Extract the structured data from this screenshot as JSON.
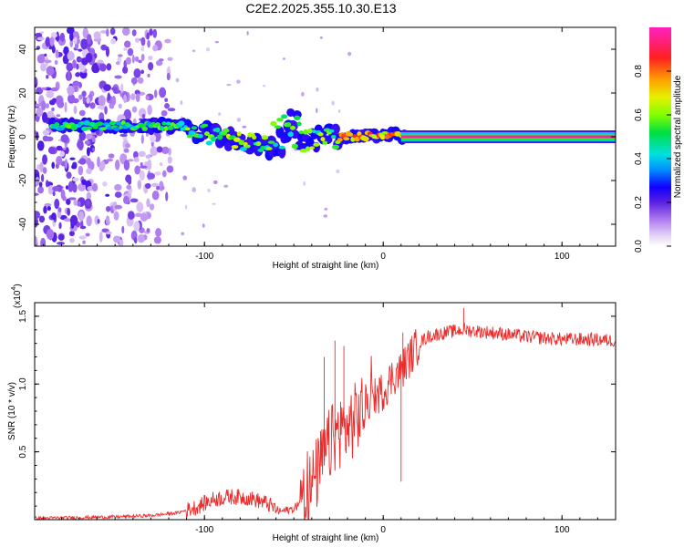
{
  "title": "C2E2.2025.355.10.30.E13",
  "chart_data": [
    {
      "type": "heatmap",
      "name": "spectrogram",
      "xlabel": "Height of straight line (km)",
      "ylabel": "Frequency (Hz)",
      "xlim": [
        -195,
        130
      ],
      "ylim": [
        -50,
        50
      ],
      "xticks": [
        -100,
        0,
        100
      ],
      "yticks": [
        -40,
        -20,
        0,
        20,
        40
      ],
      "colorbar": {
        "label": "Normalized spectral amplitude",
        "range": [
          0,
          1
        ],
        "ticks": [
          0.0,
          0.2,
          0.4,
          0.6,
          0.8
        ]
      },
      "features": [
        {
          "description": "scattered low-amplitude noise",
          "x_range": [
            -195,
            -118
          ],
          "y_range": [
            -48,
            48
          ],
          "amplitude": 0.1
        },
        {
          "description": "noisy band",
          "x_range": [
            -185,
            -110
          ],
          "y_center": 5,
          "amplitude": 0.35
        },
        {
          "description": "drifting band",
          "x_range": [
            -110,
            -60
          ],
          "y_center": [
            3,
            -5
          ],
          "amplitude": 0.55
        },
        {
          "description": "split band",
          "x_range": [
            -60,
            -25
          ],
          "y_center": [
            6,
            -3
          ],
          "amplitude": 0.5
        },
        {
          "description": "converging band",
          "x_range": [
            -25,
            10
          ],
          "y_center": [
            0,
            1
          ],
          "amplitude": 0.75
        },
        {
          "description": "clean carrier line",
          "x_range": [
            10,
            130
          ],
          "y_center": 0,
          "amplitude": 1.0
        }
      ]
    },
    {
      "type": "line",
      "name": "snr",
      "xlabel": "Height of straight line (km)",
      "ylabel": "SNR (10 * v/v)",
      "y_scale_label": "(x10",
      "y_scale_exp": "4",
      "xlim": [
        -195,
        130
      ],
      "ylim": [
        0,
        1.6
      ],
      "xticks": [
        -100,
        0,
        100
      ],
      "yticks": [
        0.5,
        1.0,
        1.5
      ],
      "color": "#ee2a2a",
      "envelope_x": [
        -195,
        -150,
        -130,
        -115,
        -105,
        -95,
        -85,
        -75,
        -65,
        -58,
        -50,
        -45,
        -40,
        -35,
        -30,
        -25,
        -20,
        -15,
        -10,
        -5,
        0,
        5,
        10,
        15,
        20,
        25,
        35,
        45,
        60,
        80,
        100,
        115,
        130
      ],
      "envelope_y": [
        0.01,
        0.02,
        0.03,
        0.05,
        0.09,
        0.15,
        0.17,
        0.16,
        0.12,
        0.06,
        0.08,
        0.15,
        0.25,
        0.4,
        0.55,
        0.65,
        0.68,
        0.75,
        0.85,
        0.9,
        0.95,
        1.05,
        1.1,
        1.2,
        1.3,
        1.35,
        1.38,
        1.4,
        1.38,
        1.35,
        1.33,
        1.33,
        1.32
      ],
      "spikes": [
        {
          "x": -33,
          "y": 1.2
        },
        {
          "x": -27,
          "y": 1.32
        },
        {
          "x": -22,
          "y": 1.28
        },
        {
          "x": 10,
          "y": 0.28
        },
        {
          "x": 11,
          "y": 1.38
        },
        {
          "x": 45,
          "y": 1.56
        }
      ]
    }
  ]
}
